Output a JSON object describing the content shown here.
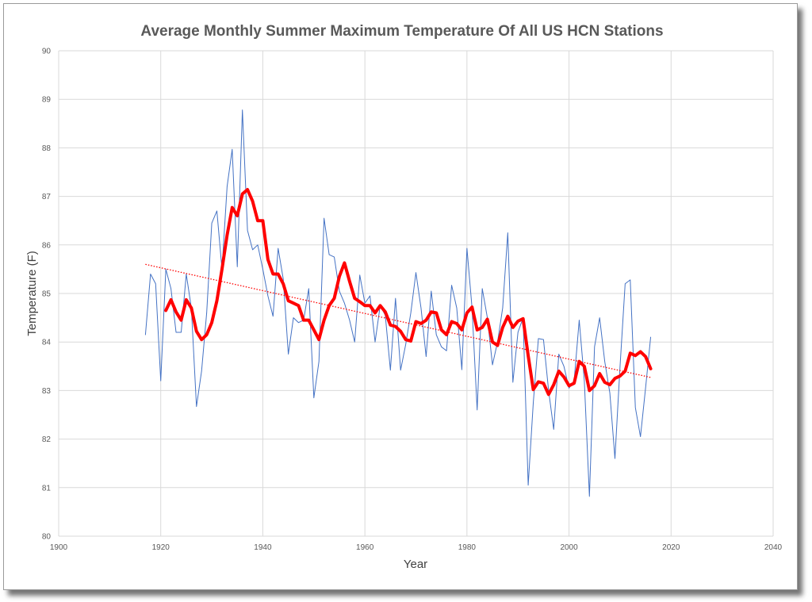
{
  "chart_data": {
    "type": "line",
    "title": "Average Monthly Summer Maximum Temperature Of All US HCN Stations",
    "xlabel": "Year",
    "ylabel": "Temperature (F)",
    "xlim": [
      1900,
      2040
    ],
    "ylim": [
      80,
      90
    ],
    "x_ticks": [
      1900,
      1920,
      1940,
      1960,
      1980,
      2000,
      2020,
      2040
    ],
    "y_ticks": [
      80,
      81,
      82,
      83,
      84,
      85,
      86,
      87,
      88,
      89,
      90
    ],
    "grid": true,
    "legend": "none",
    "series": [
      {
        "kind": "annual",
        "color": "#4472c4",
        "x": [
          1917,
          1918,
          1919,
          1920,
          1921,
          1922,
          1923,
          1924,
          1925,
          1926,
          1927,
          1928,
          1929,
          1930,
          1931,
          1932,
          1933,
          1934,
          1935,
          1936,
          1937,
          1938,
          1939,
          1940,
          1941,
          1942,
          1943,
          1944,
          1945,
          1946,
          1947,
          1948,
          1949,
          1950,
          1951,
          1952,
          1953,
          1954,
          1955,
          1956,
          1957,
          1958,
          1959,
          1960,
          1961,
          1962,
          1963,
          1964,
          1965,
          1966,
          1967,
          1968,
          1969,
          1970,
          1971,
          1972,
          1973,
          1974,
          1975,
          1976,
          1977,
          1978,
          1979,
          1980,
          1981,
          1982,
          1983,
          1984,
          1985,
          1986,
          1987,
          1988,
          1989,
          1990,
          1991,
          1992,
          1993,
          1994,
          1995,
          1996,
          1997,
          1998,
          1999,
          2000,
          2001,
          2002,
          2003,
          2004,
          2005,
          2006,
          2007,
          2008,
          2009,
          2010,
          2011,
          2012,
          2013,
          2014,
          2015,
          2016
        ],
        "values": [
          84.15,
          85.4,
          85.2,
          83.2,
          85.5,
          85.1,
          84.2,
          84.2,
          85.4,
          84.7,
          82.67,
          83.4,
          84.6,
          86.45,
          86.7,
          85.5,
          87.2,
          87.97,
          85.55,
          88.78,
          86.3,
          85.9,
          86.0,
          85.5,
          84.95,
          84.53,
          85.93,
          85.3,
          83.75,
          84.5,
          84.4,
          84.45,
          85.1,
          82.85,
          83.6,
          86.55,
          85.8,
          85.75,
          85.05,
          84.8,
          84.45,
          84.0,
          85.38,
          84.8,
          84.95,
          84.0,
          84.75,
          84.55,
          83.42,
          84.9,
          83.42,
          83.95,
          84.6,
          85.43,
          84.7,
          83.7,
          85.05,
          84.15,
          83.9,
          83.82,
          85.17,
          84.7,
          83.43,
          85.93,
          84.7,
          82.6,
          85.1,
          84.5,
          83.53,
          84.0,
          84.7,
          86.25,
          83.17,
          84.2,
          84.5,
          81.05,
          82.75,
          84.07,
          84.05,
          83.0,
          82.2,
          83.75,
          83.5,
          83.05,
          83.2,
          84.45,
          83.2,
          80.82,
          83.9,
          84.5,
          83.6,
          82.95,
          81.6,
          83.5,
          85.2,
          85.28,
          82.65,
          82.05,
          83.05,
          84.1
        ]
      },
      {
        "kind": "moving average",
        "color": "#ff0000",
        "x": [
          1921,
          1922,
          1923,
          1924,
          1925,
          1926,
          1927,
          1928,
          1929,
          1930,
          1931,
          1932,
          1933,
          1934,
          1935,
          1936,
          1937,
          1938,
          1939,
          1940,
          1941,
          1942,
          1943,
          1944,
          1945,
          1946,
          1947,
          1948,
          1949,
          1950,
          1951,
          1952,
          1953,
          1954,
          1955,
          1956,
          1957,
          1958,
          1959,
          1960,
          1961,
          1962,
          1963,
          1964,
          1965,
          1966,
          1967,
          1968,
          1969,
          1970,
          1971,
          1972,
          1973,
          1974,
          1975,
          1976,
          1977,
          1978,
          1979,
          1980,
          1981,
          1982,
          1983,
          1984,
          1985,
          1986,
          1987,
          1988,
          1989,
          1990,
          1991,
          1992,
          1993,
          1994,
          1995,
          1996,
          1997,
          1998,
          1999,
          2000,
          2001,
          2002,
          2003,
          2004,
          2005,
          2006,
          2007,
          2008,
          2009,
          2010,
          2011,
          2012,
          2013,
          2014,
          2015,
          2016
        ],
        "values": [
          84.65,
          84.87,
          84.62,
          84.45,
          84.87,
          84.7,
          84.22,
          84.05,
          84.15,
          84.4,
          84.85,
          85.5,
          86.2,
          86.77,
          86.6,
          87.05,
          87.14,
          86.9,
          86.5,
          86.5,
          85.7,
          85.4,
          85.4,
          85.2,
          84.85,
          84.8,
          84.75,
          84.45,
          84.45,
          84.25,
          84.05,
          84.45,
          84.75,
          84.9,
          85.35,
          85.63,
          85.25,
          84.9,
          84.83,
          84.75,
          84.75,
          84.6,
          84.75,
          84.62,
          84.35,
          84.32,
          84.22,
          84.05,
          84.02,
          84.42,
          84.38,
          84.45,
          84.62,
          84.6,
          84.25,
          84.15,
          84.42,
          84.38,
          84.25,
          84.6,
          84.72,
          84.25,
          84.3,
          84.47,
          84.0,
          83.93,
          84.3,
          84.53,
          84.3,
          84.43,
          84.48,
          83.72,
          83.02,
          83.18,
          83.15,
          82.92,
          83.12,
          83.4,
          83.28,
          83.1,
          83.15,
          83.6,
          83.5,
          83.0,
          83.1,
          83.35,
          83.17,
          83.12,
          83.25,
          83.3,
          83.4,
          83.77,
          83.72,
          83.8,
          83.7,
          83.45
        ]
      },
      {
        "kind": "linear trend",
        "color": "#ff0000",
        "x": [
          1917,
          2016
        ],
        "values": [
          85.6,
          83.27
        ]
      }
    ]
  }
}
